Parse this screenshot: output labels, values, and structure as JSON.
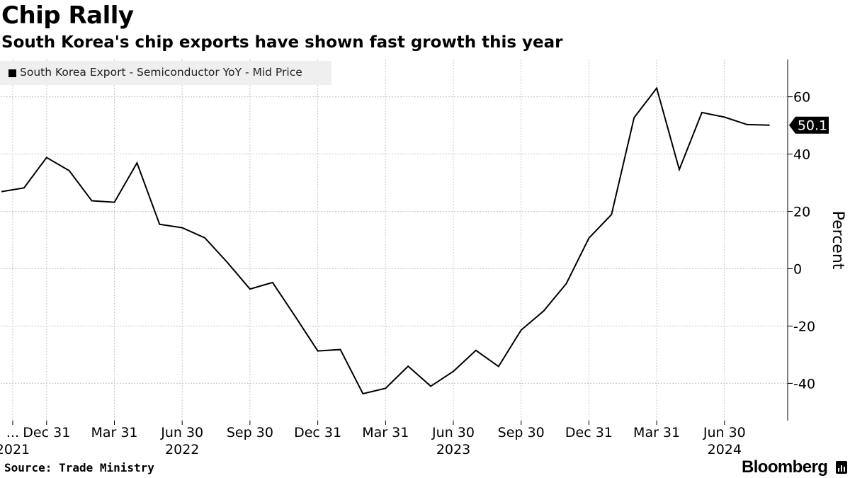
{
  "title": "Chip Rally",
  "subtitle": "South Korea's chip exports have shown fast growth this year",
  "source": "Source: Trade Ministry",
  "brand": "Bloomberg",
  "colors": {
    "line": "#000000",
    "grid": "#c8c8c8",
    "axis": "#000000",
    "legend_bg": "#efefef"
  },
  "chart_data": {
    "type": "line",
    "title": "Chip Rally",
    "subtitle": "South Korea's chip exports have shown fast growth this year",
    "ylabel": "Percent",
    "xlabel": "",
    "ylim": [
      -53,
      73
    ],
    "y_ticks": [
      -40,
      -20,
      0,
      20,
      40,
      60
    ],
    "grid": true,
    "legend_position": "top-left",
    "last_value_label": "50.1",
    "x_start": "2021-10",
    "x_end": "2024-08",
    "x_tick_labels": [
      {
        "label": "...",
        "month_index": 0.5,
        "year": "2021"
      },
      {
        "label": "Dec 31",
        "month_index": 2,
        "year": ""
      },
      {
        "label": "Mar 31",
        "month_index": 5,
        "year": ""
      },
      {
        "label": "Jun 30",
        "month_index": 8,
        "year": "2022"
      },
      {
        "label": "Sep 30",
        "month_index": 11,
        "year": ""
      },
      {
        "label": "Dec 31",
        "month_index": 14,
        "year": ""
      },
      {
        "label": "Mar 31",
        "month_index": 17,
        "year": ""
      },
      {
        "label": "Jun 30",
        "month_index": 20,
        "year": "2023"
      },
      {
        "label": "Sep 30",
        "month_index": 23,
        "year": ""
      },
      {
        "label": "Dec 31",
        "month_index": 26,
        "year": ""
      },
      {
        "label": "Mar 31",
        "month_index": 29,
        "year": ""
      },
      {
        "label": "Jun 30",
        "month_index": 32,
        "year": "2024"
      }
    ],
    "series": [
      {
        "name": "South Korea Export - Semiconductor YoY - Mid Price",
        "values": [
          26.9,
          28.2,
          38.8,
          34.2,
          23.7,
          23.2,
          36.9,
          15.5,
          14.3,
          10.8,
          2.2,
          -7.1,
          -4.8,
          -16.6,
          -28.7,
          -28.2,
          -43.6,
          -41.7,
          -34.0,
          -41.0,
          -35.8,
          -28.5,
          -34.1,
          -21.4,
          -14.7,
          -5.2,
          10.7,
          18.9,
          52.7,
          63.0,
          34.6,
          54.5,
          52.9,
          50.3,
          50.1
        ],
        "x_months": [
          0,
          1,
          2,
          3,
          4,
          5,
          6,
          7,
          8,
          9,
          10,
          11,
          12,
          13,
          14,
          15,
          16,
          17,
          18,
          19,
          20,
          21,
          22,
          23,
          24,
          25,
          26,
          27,
          28,
          29,
          30,
          31,
          32,
          33,
          34
        ]
      }
    ]
  }
}
